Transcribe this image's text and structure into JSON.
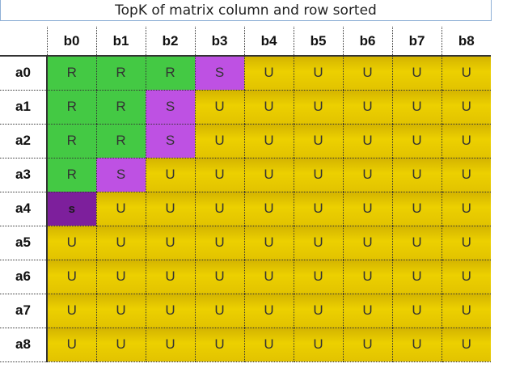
{
  "title": "TopK of matrix column and row sorted",
  "columns": [
    "b0",
    "b1",
    "b2",
    "b3",
    "b4",
    "b5",
    "b6",
    "b7",
    "b8"
  ],
  "rows": [
    {
      "label": "a0",
      "cells": [
        "R",
        "R",
        "R",
        "S",
        "U",
        "U",
        "U",
        "U",
        "U"
      ]
    },
    {
      "label": "a1",
      "cells": [
        "R",
        "R",
        "S",
        "U",
        "U",
        "U",
        "U",
        "U",
        "U"
      ]
    },
    {
      "label": "a2",
      "cells": [
        "R",
        "R",
        "S",
        "U",
        "U",
        "U",
        "U",
        "U",
        "U"
      ]
    },
    {
      "label": "a3",
      "cells": [
        "R",
        "S",
        "U",
        "U",
        "U",
        "U",
        "U",
        "U",
        "U"
      ]
    },
    {
      "label": "a4",
      "cells": [
        "s",
        "U",
        "U",
        "U",
        "U",
        "U",
        "U",
        "U",
        "U"
      ]
    },
    {
      "label": "a5",
      "cells": [
        "U",
        "U",
        "U",
        "U",
        "U",
        "U",
        "U",
        "U",
        "U"
      ]
    },
    {
      "label": "a6",
      "cells": [
        "U",
        "U",
        "U",
        "U",
        "U",
        "U",
        "U",
        "U",
        "U"
      ]
    },
    {
      "label": "a7",
      "cells": [
        "U",
        "U",
        "U",
        "U",
        "U",
        "U",
        "U",
        "U",
        "U"
      ]
    },
    {
      "label": "a8",
      "cells": [
        "U",
        "U",
        "U",
        "U",
        "U",
        "U",
        "U",
        "U",
        "U"
      ]
    }
  ],
  "colors": {
    "R": "#44c944",
    "S": "#be51e3",
    "s": "#7d1f9c",
    "U": "#e6c800"
  }
}
